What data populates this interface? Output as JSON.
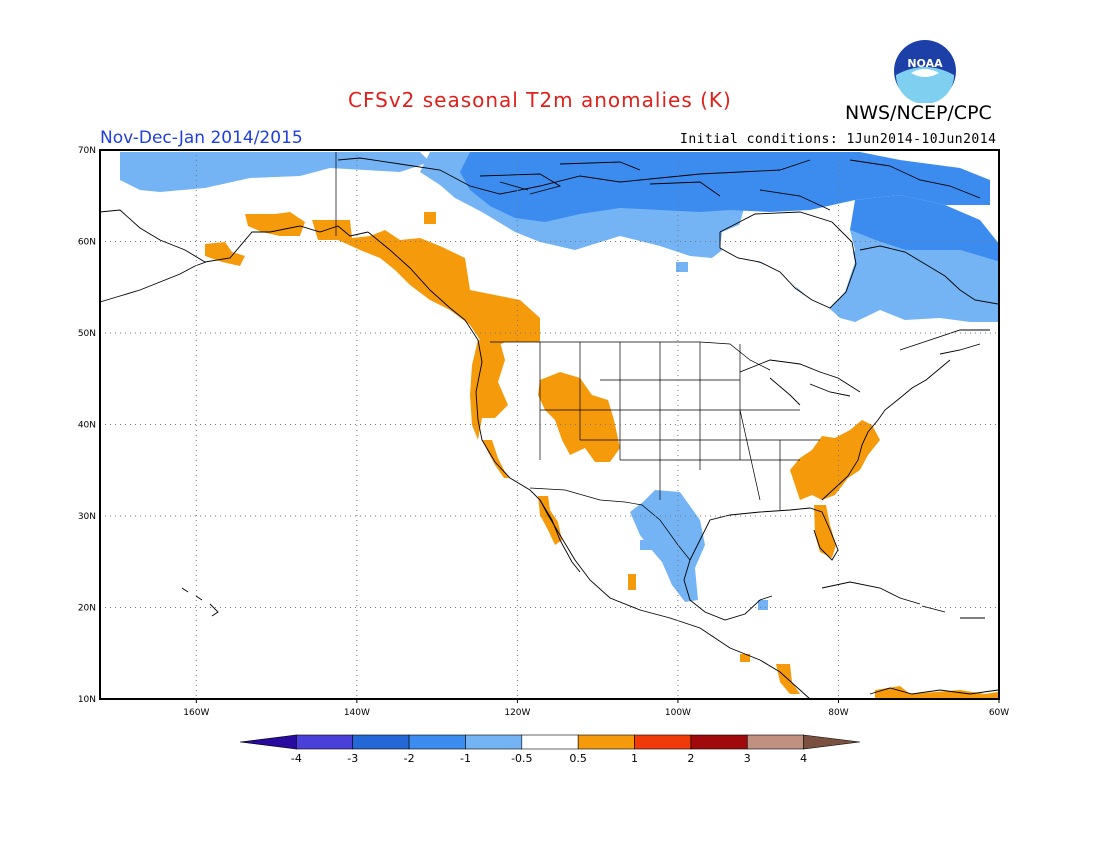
{
  "header": {
    "title": "CFSv2 seasonal T2m anomalies (K)",
    "agency": "NWS/NCEP/CPC",
    "season": "Nov-Dec-Jan 2014/2015",
    "initial_conditions": "Initial conditions: 1Jun2014-10Jun2014",
    "logo_text": "NOAA"
  },
  "map": {
    "projection": "lat-lon",
    "lon_range": [
      -172,
      -60
    ],
    "lat_range": [
      10,
      70
    ],
    "grid": "dotted",
    "lat_ticks": [
      {
        "value": 70,
        "label": "70N"
      },
      {
        "value": 60,
        "label": "60N"
      },
      {
        "value": 50,
        "label": "50N"
      },
      {
        "value": 40,
        "label": "40N"
      },
      {
        "value": 30,
        "label": "30N"
      },
      {
        "value": 20,
        "label": "20N"
      },
      {
        "value": 10,
        "label": "10N"
      }
    ],
    "lon_ticks": [
      {
        "value": -160,
        "label": "160W"
      },
      {
        "value": -140,
        "label": "140W"
      },
      {
        "value": -120,
        "label": "120W"
      },
      {
        "value": -100,
        "label": "100W"
      },
      {
        "value": -80,
        "label": "80W"
      },
      {
        "value": -60,
        "label": "60W"
      }
    ],
    "anomaly_regions": [
      {
        "name": "northern-canada-cold",
        "category": "-1 to -0.5",
        "color": "#74b4f4"
      },
      {
        "name": "hudson-bay-cold",
        "category": "-1 to -0.5",
        "color": "#74b4f4"
      },
      {
        "name": "labrador-cold",
        "category": "-2 to -1",
        "color": "#3c8cf0"
      },
      {
        "name": "arctic-archipelago-cold",
        "category": "-2 to -1",
        "color": "#3c8cf0"
      },
      {
        "name": "alaska-warm",
        "category": "0.5 to 1",
        "color": "#f59a0a"
      },
      {
        "name": "pacific-northwest-warm",
        "category": "0.5 to 1",
        "color": "#f59a0a"
      },
      {
        "name": "rockies-warm",
        "category": "0.5 to 1",
        "color": "#f59a0a"
      },
      {
        "name": "california-warm",
        "category": "0.5 to 1",
        "color": "#f59a0a"
      },
      {
        "name": "southeast-us-warm",
        "category": "0.5 to 1",
        "color": "#f59a0a"
      },
      {
        "name": "florida-warm",
        "category": "0.5 to 1",
        "color": "#f59a0a"
      },
      {
        "name": "texas-mexico-cold",
        "category": "-1 to -0.5",
        "color": "#74b4f4"
      },
      {
        "name": "central-america-warm",
        "category": "0.5 to 1",
        "color": "#f59a0a"
      }
    ]
  },
  "colorbar": {
    "segments": [
      {
        "color": "#2a0a9e"
      },
      {
        "color": "#4a3fd8"
      },
      {
        "color": "#2468d8"
      },
      {
        "color": "#3c8cf0"
      },
      {
        "color": "#74b4f4"
      },
      {
        "color": "#ffffff"
      },
      {
        "color": "#f59a0a"
      },
      {
        "color": "#f03a0a"
      },
      {
        "color": "#a00a0a"
      },
      {
        "color": "#c09080"
      },
      {
        "color": "#7a5040"
      }
    ],
    "labels": [
      "-4",
      "-3",
      "-2",
      "-1",
      "-0.5",
      "0.5",
      "1",
      "2",
      "3",
      "4"
    ]
  }
}
